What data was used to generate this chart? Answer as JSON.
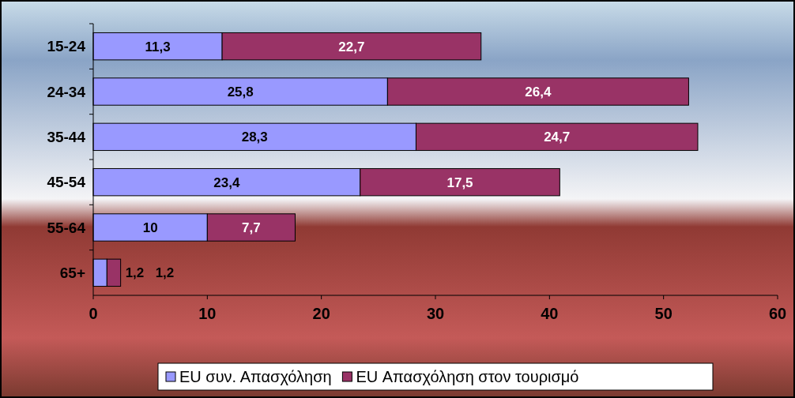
{
  "chart_data": {
    "type": "bar",
    "orientation": "horizontal",
    "stacked": true,
    "categories": [
      "15-24",
      "24-34",
      "35-44",
      "45-54",
      "55-64",
      "65+"
    ],
    "series": [
      {
        "name": "EU συν. Απασχόληση",
        "color": "#9999ff",
        "values": [
          11.3,
          25.8,
          28.3,
          23.4,
          10,
          1.2
        ],
        "value_labels": [
          "11,3",
          "25,8",
          "28,3",
          "23,4",
          "10",
          "1,2"
        ]
      },
      {
        "name": "EU Απασχόληση στον τουρισμό",
        "color": "#993366",
        "values": [
          22.7,
          26.4,
          24.7,
          17.5,
          7.7,
          1.2
        ],
        "value_labels": [
          "22,7",
          "26,4",
          "24,7",
          "17,5",
          "7,7",
          "1,2"
        ]
      }
    ],
    "xlim": [
      0,
      60
    ],
    "xticks": [
      0,
      10,
      20,
      30,
      40,
      50,
      60
    ],
    "grid": false,
    "legend": "bottom"
  }
}
